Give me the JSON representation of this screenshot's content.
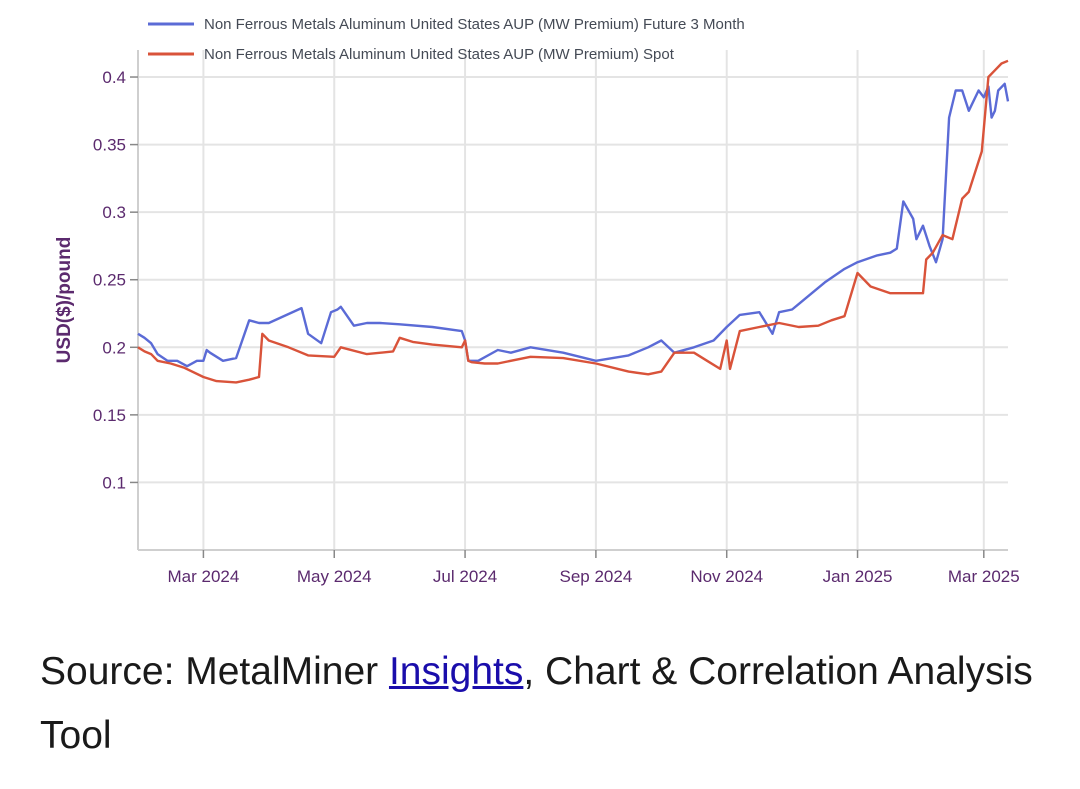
{
  "chart_data": {
    "type": "line",
    "title": "",
    "xlabel": "",
    "ylabel": "USD($)/pound",
    "ylim": [
      0.05,
      0.42
    ],
    "yticks": [
      0.1,
      0.15,
      0.2,
      0.25,
      0.3,
      0.35,
      0.4
    ],
    "ytick_labels": [
      "0.1",
      "0.15",
      "0.2",
      "0.25",
      "0.3",
      "0.35",
      "0.4"
    ],
    "xlim": [
      0,
      13.3
    ],
    "xticks": [
      1,
      3,
      5,
      7,
      9,
      11,
      12.93
    ],
    "xtick_labels": [
      "Mar 2024",
      "May 2024",
      "Jul 2024",
      "Sep 2024",
      "Nov 2024",
      "Jan 2025",
      "Mar 2025"
    ],
    "x_unit": "months since 2024-02-01",
    "legend_position": "top-left",
    "series": [
      {
        "name": "Non Ferrous Metals Aluminum United States AUP (MW Premium) Future 3 Month",
        "color": "#5b6bd6",
        "x": [
          0,
          0.1,
          0.2,
          0.3,
          0.45,
          0.6,
          0.75,
          0.9,
          1.0,
          1.05,
          1.1,
          1.3,
          1.5,
          1.7,
          1.85,
          2.0,
          2.5,
          2.6,
          2.8,
          2.95,
          3.05,
          3.1,
          3.3,
          3.5,
          3.7,
          4.0,
          4.5,
          4.95,
          5.0,
          5.05,
          5.2,
          5.5,
          5.7,
          6.0,
          6.5,
          7.0,
          7.5,
          7.8,
          8.0,
          8.2,
          8.5,
          8.8,
          9.0,
          9.2,
          9.5,
          9.7,
          9.8,
          10.0,
          10.1,
          10.3,
          10.5,
          10.8,
          11.0,
          11.3,
          11.5,
          11.6,
          11.7,
          11.85,
          11.9,
          12.0,
          12.1,
          12.2,
          12.3,
          12.4,
          12.5,
          12.6,
          12.7,
          12.85,
          12.93,
          13.0,
          13.05,
          13.1,
          13.15,
          13.25,
          13.3
        ],
        "values": [
          0.21,
          0.207,
          0.203,
          0.195,
          0.19,
          0.19,
          0.186,
          0.19,
          0.19,
          0.198,
          0.196,
          0.19,
          0.192,
          0.22,
          0.218,
          0.218,
          0.229,
          0.21,
          0.203,
          0.226,
          0.228,
          0.23,
          0.216,
          0.218,
          0.218,
          0.217,
          0.215,
          0.212,
          0.205,
          0.19,
          0.19,
          0.198,
          0.196,
          0.2,
          0.196,
          0.19,
          0.194,
          0.2,
          0.205,
          0.196,
          0.2,
          0.205,
          0.215,
          0.224,
          0.226,
          0.21,
          0.226,
          0.228,
          0.232,
          0.24,
          0.248,
          0.258,
          0.263,
          0.268,
          0.27,
          0.273,
          0.308,
          0.295,
          0.28,
          0.29,
          0.275,
          0.263,
          0.28,
          0.37,
          0.39,
          0.39,
          0.375,
          0.39,
          0.385,
          0.393,
          0.37,
          0.375,
          0.39,
          0.395,
          0.382
        ]
      },
      {
        "name": "Non Ferrous Metals Aluminum United States AUP (MW Premium) Spot",
        "color": "#d9533a",
        "x": [
          0,
          0.1,
          0.2,
          0.3,
          0.5,
          0.7,
          1.0,
          1.2,
          1.5,
          1.7,
          1.85,
          1.9,
          2.0,
          2.3,
          2.6,
          3.0,
          3.1,
          3.5,
          3.9,
          4.0,
          4.2,
          4.5,
          4.95,
          5.0,
          5.05,
          5.1,
          5.3,
          5.5,
          6.0,
          6.5,
          7.0,
          7.5,
          7.8,
          8.0,
          8.2,
          8.5,
          8.7,
          8.9,
          9.0,
          9.05,
          9.2,
          9.5,
          9.8,
          10.1,
          10.4,
          10.6,
          10.8,
          11.0,
          11.2,
          11.5,
          12.0,
          12.05,
          12.15,
          12.3,
          12.45,
          12.6,
          12.7,
          12.8,
          12.9,
          13.0,
          13.1,
          13.2,
          13.3
        ],
        "values": [
          0.2,
          0.197,
          0.195,
          0.19,
          0.188,
          0.185,
          0.178,
          0.175,
          0.174,
          0.176,
          0.178,
          0.21,
          0.205,
          0.2,
          0.194,
          0.193,
          0.2,
          0.195,
          0.197,
          0.207,
          0.204,
          0.202,
          0.2,
          0.205,
          0.19,
          0.189,
          0.188,
          0.188,
          0.193,
          0.192,
          0.188,
          0.182,
          0.18,
          0.182,
          0.196,
          0.196,
          0.19,
          0.184,
          0.205,
          0.184,
          0.212,
          0.215,
          0.218,
          0.215,
          0.216,
          0.22,
          0.223,
          0.255,
          0.245,
          0.24,
          0.24,
          0.265,
          0.27,
          0.283,
          0.28,
          0.31,
          0.315,
          0.33,
          0.345,
          0.4,
          0.405,
          0.41,
          0.412
        ]
      }
    ]
  },
  "caption": {
    "prefix": "Source: MetalMiner ",
    "link": "Insights",
    "suffix": ", Chart & Correlation Analysis Tool"
  }
}
